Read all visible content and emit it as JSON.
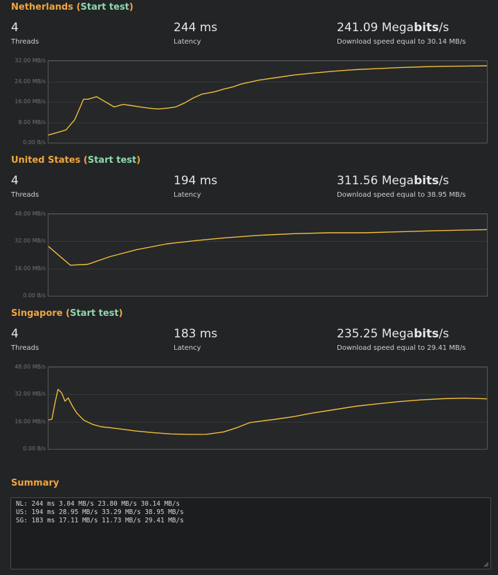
{
  "tests": [
    {
      "country": "Netherlands",
      "start_label": "Start test",
      "threads": "4",
      "threads_label": "Threads",
      "latency": "244 ms",
      "latency_label": "Latency",
      "speed_value": "241.09",
      "speed_unit_pre": "Mega",
      "speed_unit_bold": "bits",
      "speed_unit_post": "/s",
      "speed_note": "Download speed equal to 30.14 MB/s",
      "chart_data": {
        "type": "line",
        "ylim": [
          0,
          32
        ],
        "yticks": [
          "32.00 MB/s",
          "24.00 MB/s",
          "16.00 MB/s",
          "8.00 MB/s",
          "0.00 B/s"
        ],
        "x": [
          0,
          2,
          4,
          6,
          7,
          8,
          9,
          11,
          13,
          15,
          17,
          19,
          21,
          23,
          25,
          27,
          29,
          31,
          33,
          35,
          38,
          40,
          42,
          44,
          48,
          52,
          56,
          60,
          65,
          70,
          75,
          80,
          85,
          90,
          95,
          100
        ],
        "values": [
          3,
          4,
          5,
          9,
          13,
          17,
          17,
          18,
          16,
          14,
          15,
          14.5,
          14,
          13.5,
          13.2,
          13.5,
          14,
          15.5,
          17.5,
          19,
          20,
          21,
          21.8,
          23,
          24.5,
          25.5,
          26.5,
          27.2,
          28,
          28.6,
          29,
          29.4,
          29.7,
          29.9,
          30,
          30.1
        ]
      }
    },
    {
      "country": "United States",
      "start_label": "Start test",
      "threads": "4",
      "threads_label": "Threads",
      "latency": "194 ms",
      "latency_label": "Latency",
      "speed_value": "311.56",
      "speed_unit_pre": "Mega",
      "speed_unit_bold": "bits",
      "speed_unit_post": "/s",
      "speed_note": "Download speed equal to 38.95 MB/s",
      "chart_data": {
        "type": "line",
        "ylim": [
          0,
          48
        ],
        "yticks": [
          "48.00 MB/s",
          "32.00 MB/s",
          "16.00 MB/s",
          "0.00 B/s"
        ],
        "x": [
          0,
          5,
          9,
          14,
          20,
          27,
          34,
          40,
          48,
          56,
          64,
          72,
          80,
          88,
          95,
          100
        ],
        "values": [
          29,
          18,
          18.5,
          23,
          27,
          30.5,
          32.5,
          34,
          35.5,
          36.5,
          37,
          37,
          37.6,
          38.2,
          38.6,
          38.9
        ]
      }
    },
    {
      "country": "Singapore",
      "start_label": "Start test",
      "threads": "4",
      "threads_label": "Threads",
      "latency": "183 ms",
      "latency_label": "Latency",
      "speed_value": "235.25",
      "speed_unit_pre": "Mega",
      "speed_unit_bold": "bits",
      "speed_unit_post": "/s",
      "speed_note": "Download speed equal to 29.41 MB/s",
      "chart_data": {
        "type": "line",
        "ylim": [
          0,
          48
        ],
        "yticks": [
          "48.00 MB/s",
          "32.00 MB/s",
          "16.00 MB/s",
          "0.00 B/s"
        ],
        "x": [
          0,
          0.8,
          1.5,
          2.2,
          3,
          3.8,
          4.5,
          5.5,
          6.5,
          8,
          10,
          12,
          14,
          17,
          20,
          24,
          28,
          32,
          36,
          40,
          43,
          46,
          49,
          52,
          56,
          60,
          65,
          70,
          75,
          80,
          85,
          90,
          95,
          100
        ],
        "values": [
          17,
          17.5,
          27,
          35,
          33,
          28,
          30,
          25,
          21,
          17,
          14.5,
          13,
          12.5,
          11.5,
          10.5,
          9.5,
          8.8,
          8.5,
          8.6,
          10,
          12.5,
          15.5,
          16.5,
          17.5,
          19,
          21,
          23,
          25,
          26.5,
          27.8,
          28.8,
          29.5,
          29.8,
          29.4
        ]
      }
    }
  ],
  "summary": {
    "title": "Summary",
    "lines": [
      "NL: 244 ms 3.04 MB/s 23.80 MB/s 30.14 MB/s",
      "US: 194 ms 28.95 MB/s 33.29 MB/s 38.95 MB/s",
      "SG: 183 ms 17.11 MB/s 11.73 MB/s 29.41 MB/s"
    ]
  },
  "colors": {
    "accent": "#f0a640",
    "link": "#8fd9ad",
    "line": "#f1bf3b",
    "grid": "#353739",
    "border": "#555759"
  }
}
